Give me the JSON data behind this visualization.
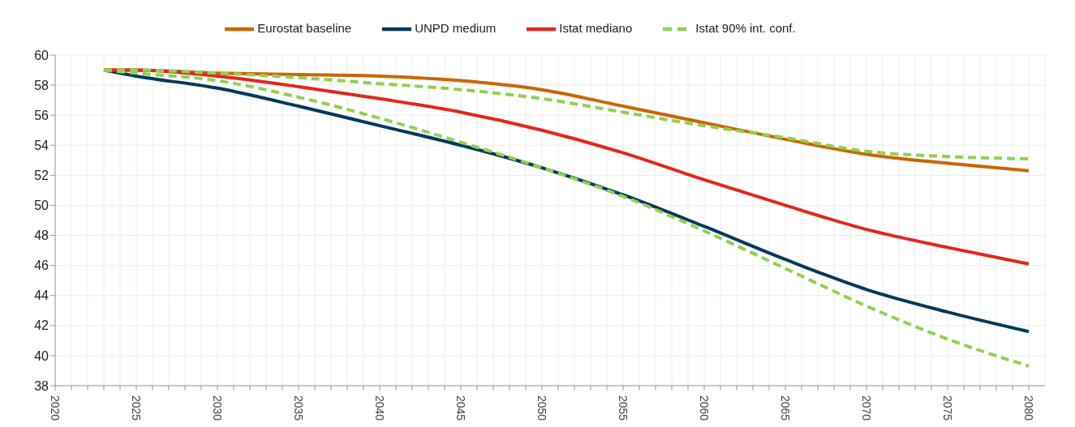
{
  "chart_data": {
    "type": "line",
    "x": [
      2023,
      2025,
      2030,
      2035,
      2040,
      2045,
      2050,
      2055,
      2060,
      2065,
      2070,
      2075,
      2080
    ],
    "series": [
      {
        "name": "Eurostat baseline",
        "color": "#cc6600",
        "line_style": "solid",
        "values": [
          59.0,
          59.0,
          58.8,
          58.7,
          58.6,
          58.3,
          57.7,
          56.6,
          55.5,
          54.4,
          53.4,
          52.8,
          52.3
        ]
      },
      {
        "name": "UNPD medium",
        "color": "#003a5c",
        "line_style": "solid",
        "values": [
          59.0,
          58.6,
          57.8,
          56.6,
          55.3,
          54.0,
          52.5,
          50.7,
          48.6,
          46.4,
          44.4,
          42.9,
          41.6
        ]
      },
      {
        "name": "Istat mediano",
        "color": "#e3261c",
        "line_style": "solid",
        "values": [
          59.0,
          59.0,
          58.6,
          57.9,
          57.1,
          56.2,
          55.0,
          53.5,
          51.7,
          50.0,
          48.4,
          47.2,
          46.1
        ]
      },
      {
        "name": "Istat 90% int. conf.",
        "color": "#92d050",
        "line_style": "dashed",
        "values": [
          59.0,
          59.0,
          58.8,
          58.5,
          58.1,
          57.7,
          57.1,
          56.2,
          55.3,
          54.5,
          53.6,
          53.25,
          53.1
        ]
      },
      {
        "color": "#92d050",
        "line_style": "dashed",
        "values": [
          59.0,
          58.8,
          58.3,
          57.2,
          55.8,
          54.2,
          52.5,
          50.6,
          48.3,
          45.8,
          43.3,
          41.1,
          39.3
        ]
      }
    ],
    "xlim": [
      2020,
      2081
    ],
    "xticks": [
      2020,
      {
        "value": 2021,
        "label": null
      },
      {
        "value": 2022,
        "label": null
      },
      {
        "value": 2023,
        "label": null
      },
      {
        "value": 2024,
        "label": null
      },
      2025,
      {
        "value": 2026,
        "label": null
      },
      {
        "value": 2027,
        "label": null
      },
      {
        "value": 2028,
        "label": null
      },
      {
        "value": 2029,
        "label": null
      },
      2030,
      {
        "value": 2031,
        "label": null
      },
      {
        "value": 2032,
        "label": null
      },
      {
        "value": 2033,
        "label": null
      },
      {
        "value": 2034,
        "label": null
      },
      2035,
      {
        "value": 2036,
        "label": null
      },
      {
        "value": 2037,
        "label": null
      },
      {
        "value": 2038,
        "label": null
      },
      {
        "value": 2039,
        "label": null
      },
      2040,
      {
        "value": 2041,
        "label": null
      },
      {
        "value": 2042,
        "label": null
      },
      {
        "value": 2043,
        "label": null
      },
      {
        "value": 2044,
        "label": null
      },
      2045,
      {
        "value": 2046,
        "label": null
      },
      {
        "value": 2047,
        "label": null
      },
      {
        "value": 2048,
        "label": null
      },
      {
        "value": 2049,
        "label": null
      },
      2050,
      {
        "value": 2051,
        "label": null
      },
      {
        "value": 2052,
        "label": null
      },
      {
        "value": 2053,
        "label": null
      },
      {
        "value": 2054,
        "label": null
      },
      2055,
      {
        "value": 2056,
        "label": null
      },
      {
        "value": 2057,
        "label": null
      },
      {
        "value": 2058,
        "label": null
      },
      {
        "value": 2059,
        "label": null
      },
      2060,
      {
        "value": 2061,
        "label": null
      },
      {
        "value": 2062,
        "label": null
      },
      {
        "value": 2063,
        "label": null
      },
      {
        "value": 2064,
        "label": null
      },
      2065,
      {
        "value": 2066,
        "label": null
      },
      {
        "value": 2067,
        "label": null
      },
      {
        "value": 2068,
        "label": null
      },
      {
        "value": 2069,
        "label": null
      },
      2070,
      {
        "value": 2071,
        "label": null
      },
      {
        "value": 2072,
        "label": null
      },
      {
        "value": 2073,
        "label": null
      },
      {
        "value": 2074,
        "label": null
      },
      2075,
      {
        "value": 2076,
        "label": null
      },
      {
        "value": 2077,
        "label": null
      },
      {
        "value": 2078,
        "label": null
      },
      {
        "value": 2079,
        "label": null
      },
      2080
    ],
    "ylim": [
      38,
      60
    ],
    "yticks": [
      38,
      40,
      42,
      44,
      46,
      48,
      50,
      52,
      54,
      56,
      58,
      60
    ],
    "grid": true,
    "legend": "top",
    "marker": "none"
  }
}
